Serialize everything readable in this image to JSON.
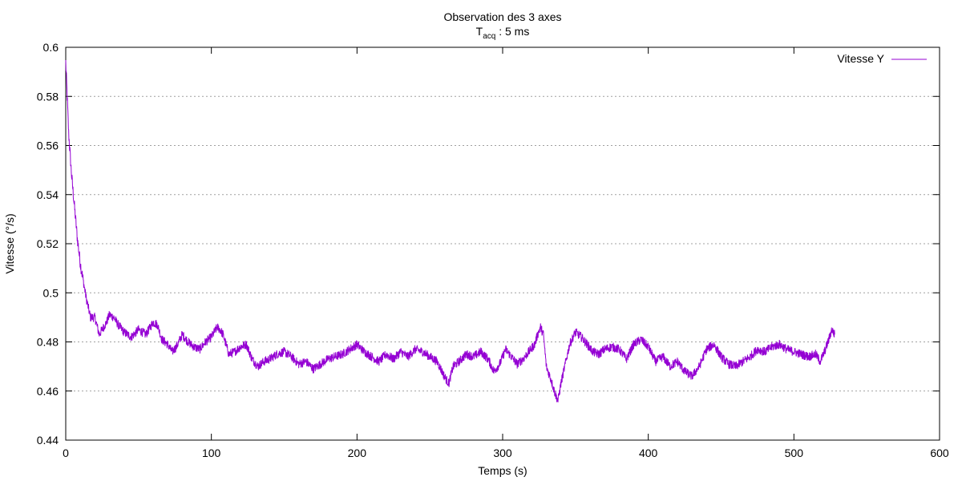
{
  "chart_data": {
    "type": "line",
    "title": "Observation des 3 axes",
    "subtitle_main": "T",
    "subtitle_sub": "acq",
    "subtitle_rest": " : 5 ms",
    "xlabel": "Temps (s)",
    "ylabel": "Vitesse (°/s)",
    "xlim": [
      0,
      600
    ],
    "ylim": [
      0.44,
      0.6
    ],
    "x_ticks": [
      "0",
      "100",
      "200",
      "300",
      "400",
      "500",
      "600"
    ],
    "y_ticks": [
      "0.44",
      "0.46",
      "0.48",
      "0.5",
      "0.52",
      "0.54",
      "0.56",
      "0.58",
      "0.6"
    ],
    "grid": "horizontal dotted",
    "legend_position": "top-right",
    "series": [
      {
        "name": "Vitesse Y",
        "color": "#9400d3",
        "x": [
          0,
          1,
          2,
          4,
          6,
          8,
          10,
          12,
          14,
          17,
          20,
          23,
          26,
          28,
          30,
          33,
          36,
          40,
          45,
          50,
          55,
          60,
          63,
          66,
          70,
          73,
          76,
          80,
          84,
          88,
          92,
          96,
          100,
          104,
          106,
          108,
          112,
          116,
          120,
          124,
          128,
          132,
          136,
          140,
          145,
          150,
          155,
          160,
          165,
          170,
          175,
          180,
          185,
          190,
          195,
          200,
          205,
          210,
          215,
          220,
          225,
          230,
          235,
          240,
          245,
          250,
          255,
          260,
          263,
          266,
          270,
          275,
          280,
          285,
          290,
          294,
          298,
          302,
          306,
          310,
          314,
          318,
          322,
          324,
          326,
          328,
          330,
          333,
          336,
          338,
          340,
          343,
          346,
          350,
          354,
          358,
          362,
          366,
          370,
          375,
          380,
          385,
          390,
          395,
          400,
          405,
          410,
          415,
          420,
          425,
          430,
          435,
          440,
          445,
          450,
          455,
          460,
          465,
          470,
          475,
          480,
          485,
          490,
          495,
          500,
          505,
          510,
          515,
          518,
          521,
          524,
          526,
          528
        ],
        "y": [
          0.594,
          0.58,
          0.565,
          0.548,
          0.535,
          0.522,
          0.512,
          0.505,
          0.498,
          0.49,
          0.49,
          0.483,
          0.486,
          0.488,
          0.491,
          0.49,
          0.487,
          0.484,
          0.482,
          0.485,
          0.483,
          0.488,
          0.487,
          0.481,
          0.479,
          0.476,
          0.478,
          0.483,
          0.48,
          0.478,
          0.477,
          0.48,
          0.482,
          0.486,
          0.485,
          0.483,
          0.475,
          0.476,
          0.478,
          0.479,
          0.473,
          0.47,
          0.472,
          0.473,
          0.475,
          0.476,
          0.474,
          0.471,
          0.472,
          0.469,
          0.471,
          0.473,
          0.474,
          0.475,
          0.477,
          0.479,
          0.476,
          0.474,
          0.472,
          0.475,
          0.473,
          0.476,
          0.474,
          0.477,
          0.476,
          0.474,
          0.472,
          0.466,
          0.463,
          0.47,
          0.472,
          0.475,
          0.474,
          0.476,
          0.473,
          0.468,
          0.471,
          0.477,
          0.474,
          0.471,
          0.473,
          0.476,
          0.479,
          0.483,
          0.486,
          0.483,
          0.47,
          0.465,
          0.459,
          0.456,
          0.463,
          0.471,
          0.479,
          0.484,
          0.482,
          0.479,
          0.476,
          0.475,
          0.477,
          0.478,
          0.477,
          0.473,
          0.479,
          0.481,
          0.478,
          0.472,
          0.474,
          0.47,
          0.472,
          0.468,
          0.466,
          0.47,
          0.477,
          0.479,
          0.474,
          0.471,
          0.47,
          0.472,
          0.474,
          0.477,
          0.476,
          0.478,
          0.479,
          0.477,
          0.476,
          0.475,
          0.474,
          0.475,
          0.472,
          0.476,
          0.481,
          0.485,
          0.483
        ]
      }
    ]
  }
}
